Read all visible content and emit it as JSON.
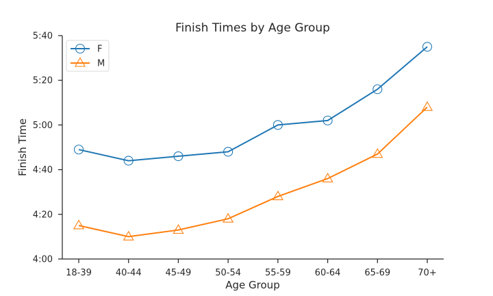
{
  "chart_data": {
    "type": "line",
    "title": "Finish Times by Age Group",
    "xlabel": "Age Group",
    "ylabel": "Finish Time",
    "categories": [
      "18-39",
      "40-44",
      "45-49",
      "50-54",
      "55-59",
      "60-64",
      "65-69",
      "70+"
    ],
    "y_unit": "minutes",
    "ylim": [
      240,
      340
    ],
    "yticks": [
      240,
      260,
      280,
      300,
      320,
      340
    ],
    "ytick_labels": [
      "4:00",
      "4:20",
      "4:40",
      "5:00",
      "5:20",
      "5:40"
    ],
    "series": [
      {
        "name": "F",
        "color": "#1f77b4",
        "marker": "circle",
        "values": [
          289,
          284,
          286,
          288,
          300,
          302,
          316,
          335
        ]
      },
      {
        "name": "M",
        "color": "#ff7f0e",
        "marker": "triangle",
        "values": [
          255,
          250,
          253,
          258,
          268,
          276,
          287,
          308
        ]
      }
    ],
    "legend_position": "top-left",
    "grid": false
  }
}
